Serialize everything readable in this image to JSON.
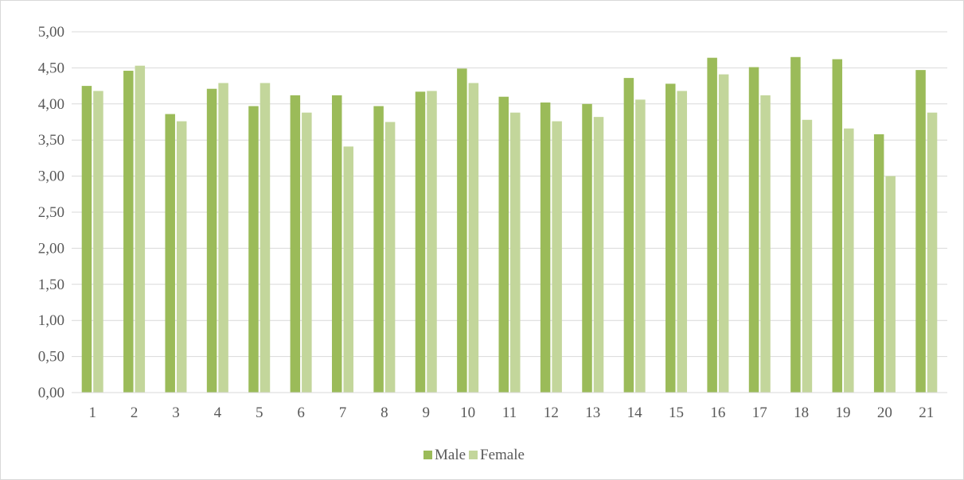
{
  "chart_data": {
    "type": "bar",
    "categories": [
      "1",
      "2",
      "3",
      "4",
      "5",
      "6",
      "7",
      "8",
      "9",
      "10",
      "11",
      "12",
      "13",
      "14",
      "15",
      "16",
      "17",
      "18",
      "19",
      "20",
      "21"
    ],
    "series": [
      {
        "name": "Male",
        "color": "#9bbb59",
        "values": [
          4.25,
          4.46,
          3.86,
          4.21,
          3.97,
          4.12,
          4.12,
          3.97,
          4.17,
          4.49,
          4.1,
          4.02,
          4.0,
          4.36,
          4.28,
          4.64,
          4.51,
          4.65,
          4.62,
          3.58,
          4.47
        ]
      },
      {
        "name": "Female",
        "color": "#c3d69b",
        "values": [
          4.18,
          4.53,
          3.76,
          4.29,
          4.29,
          3.88,
          3.41,
          3.75,
          4.18,
          4.29,
          3.88,
          3.76,
          3.82,
          4.06,
          4.18,
          4.41,
          4.12,
          3.78,
          3.66,
          3.0,
          3.88
        ]
      }
    ],
    "ylim": [
      0,
      5
    ],
    "yticks": [
      "0,00",
      "0,50",
      "1,00",
      "1,50",
      "2,00",
      "2,50",
      "3,00",
      "3,50",
      "4,00",
      "4,50",
      "5,00"
    ],
    "grid": true,
    "legend_position": "bottom"
  }
}
